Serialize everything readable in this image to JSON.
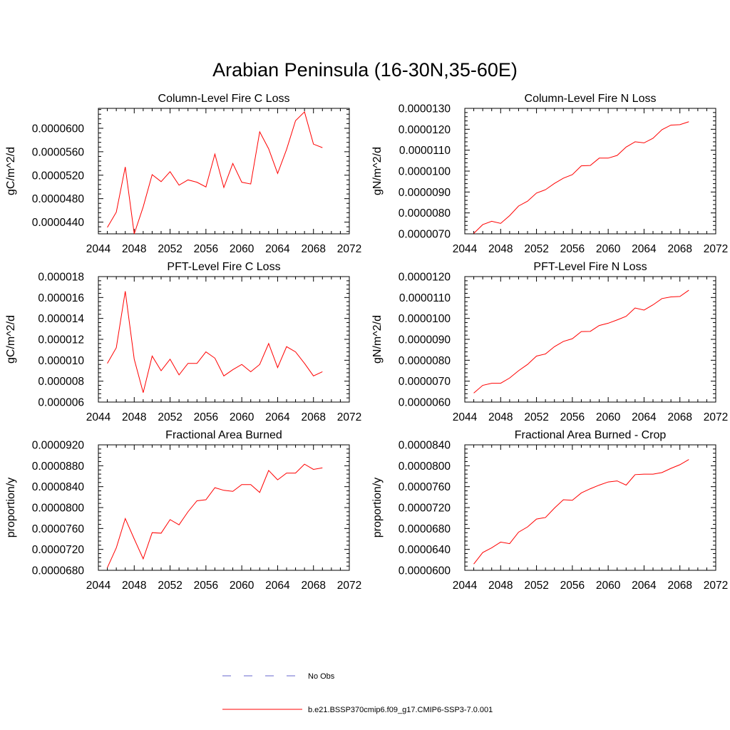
{
  "figure": {
    "title": "Arabian Peninsula (16-30N,35-60E)"
  },
  "colors": {
    "model": "#ff0000",
    "obs": "#6666cc"
  },
  "legend": {
    "entries": [
      {
        "label": "No Obs",
        "style": "dashed",
        "color": "#6666cc"
      },
      {
        "label": "b.e21.BSSP370cmip6.f09_g17.CMIP6-SSP3-7.0.001",
        "style": "solid",
        "color": "#ff0000"
      }
    ]
  },
  "chart_data": [
    {
      "type": "line",
      "title": "Column-Level Fire C Loss",
      "xlabel": "",
      "ylabel": "gC/m^2/d",
      "xlim": [
        2044,
        2072
      ],
      "ylim": [
        4.2e-05,
        6.34e-05
      ],
      "xticks": [
        "2044",
        "2048",
        "2052",
        "2056",
        "2060",
        "2064",
        "2068",
        "2072"
      ],
      "yticks": [
        {
          "value": 4.4e-05,
          "label": "0.0000440"
        },
        {
          "value": 4.8e-05,
          "label": "0.0000480"
        },
        {
          "value": 5.2e-05,
          "label": "0.0000520"
        },
        {
          "value": 5.6e-05,
          "label": "0.0000560"
        },
        {
          "value": 6e-05,
          "label": "0.0000600"
        }
      ],
      "series": [
        {
          "x": [
            2045,
            2046,
            2047,
            2048,
            2049,
            2050,
            2051,
            2052,
            2053,
            2054,
            2055,
            2056,
            2057,
            2058,
            2059,
            2060,
            2061,
            2062,
            2063,
            2064,
            2065,
            2066,
            2067,
            2068,
            2069
          ],
          "values": [
            4.31e-05,
            4.57e-05,
            5.34e-05,
            4.2e-05,
            4.66e-05,
            5.21e-05,
            5.09e-05,
            5.26e-05,
            5.03e-05,
            5.12e-05,
            5.08e-05,
            5e-05,
            5.56e-05,
            4.99e-05,
            5.4e-05,
            5.08e-05,
            5.05e-05,
            5.94e-05,
            5.65e-05,
            5.23e-05,
            5.64e-05,
            6.13e-05,
            6.28e-05,
            5.73e-05,
            5.67e-05
          ]
        }
      ]
    },
    {
      "type": "line",
      "title": "Column-Level Fire N Loss",
      "xlabel": "",
      "ylabel": "gN/m^2/d",
      "xlim": [
        2044,
        2072
      ],
      "ylim": [
        7e-06,
        1.3e-05
      ],
      "xticks": [
        "2044",
        "2048",
        "2052",
        "2056",
        "2060",
        "2064",
        "2068",
        "2072"
      ],
      "yticks": [
        {
          "value": 7e-06,
          "label": "0.0000070"
        },
        {
          "value": 8e-06,
          "label": "0.0000080"
        },
        {
          "value": 9e-06,
          "label": "0.0000090"
        },
        {
          "value": 1e-05,
          "label": "0.0000100"
        },
        {
          "value": 1.1e-05,
          "label": "0.0000110"
        },
        {
          "value": 1.2e-05,
          "label": "0.0000120"
        },
        {
          "value": 1.3e-05,
          "label": "0.0000130"
        }
      ],
      "series": [
        {
          "x": [
            2045,
            2046,
            2047,
            2048,
            2049,
            2050,
            2051,
            2052,
            2053,
            2054,
            2055,
            2056,
            2057,
            2058,
            2059,
            2060,
            2061,
            2062,
            2063,
            2064,
            2065,
            2066,
            2067,
            2068,
            2069
          ],
          "values": [
            7.02e-06,
            7.44e-06,
            7.6e-06,
            7.5e-06,
            7.87e-06,
            8.33e-06,
            8.56e-06,
            8.95e-06,
            9.11e-06,
            9.41e-06,
            9.66e-06,
            9.83e-06,
            1.025e-05,
            1.027e-05,
            1.062e-05,
            1.062e-05,
            1.075e-05,
            1.115e-05,
            1.14e-05,
            1.135e-05,
            1.157e-05,
            1.198e-05,
            1.22e-05,
            1.222e-05,
            1.236e-05
          ]
        }
      ]
    },
    {
      "type": "line",
      "title": "PFT-Level Fire C Loss",
      "xlabel": "",
      "ylabel": "gC/m^2/d",
      "xlim": [
        2044,
        2072
      ],
      "ylim": [
        6e-06,
        1.8e-05
      ],
      "xticks": [
        "2044",
        "2048",
        "2052",
        "2056",
        "2060",
        "2064",
        "2068",
        "2072"
      ],
      "yticks": [
        {
          "value": 6e-06,
          "label": "0.000006"
        },
        {
          "value": 8e-06,
          "label": "0.000008"
        },
        {
          "value": 1e-05,
          "label": "0.000010"
        },
        {
          "value": 1.2e-05,
          "label": "0.000012"
        },
        {
          "value": 1.4e-05,
          "label": "0.000014"
        },
        {
          "value": 1.6e-05,
          "label": "0.000016"
        },
        {
          "value": 1.8e-05,
          "label": "0.000018"
        }
      ],
      "series": [
        {
          "x": [
            2045,
            2046,
            2047,
            2048,
            2049,
            2050,
            2051,
            2052,
            2053,
            2054,
            2055,
            2056,
            2057,
            2058,
            2059,
            2060,
            2061,
            2062,
            2063,
            2064,
            2065,
            2066,
            2067,
            2068,
            2069
          ],
          "values": [
            9.7e-06,
            1.12e-05,
            1.66e-05,
            1.01e-05,
            6.9e-06,
            1.04e-05,
            9e-06,
            1.01e-05,
            8.6e-06,
            9.7e-06,
            9.7e-06,
            1.08e-05,
            1.02e-05,
            8.5e-06,
            9.1e-06,
            9.6e-06,
            8.9e-06,
            9.6e-06,
            1.16e-05,
            9.3e-06,
            1.13e-05,
            1.08e-05,
            9.7e-06,
            8.5e-06,
            8.9e-06
          ]
        }
      ]
    },
    {
      "type": "line",
      "title": "PFT-Level Fire N Loss",
      "xlabel": "",
      "ylabel": "gN/m^2/d",
      "xlim": [
        2044,
        2072
      ],
      "ylim": [
        6e-06,
        1.2e-05
      ],
      "xticks": [
        "2044",
        "2048",
        "2052",
        "2056",
        "2060",
        "2064",
        "2068",
        "2072"
      ],
      "yticks": [
        {
          "value": 6e-06,
          "label": "0.0000060"
        },
        {
          "value": 7e-06,
          "label": "0.0000070"
        },
        {
          "value": 8e-06,
          "label": "0.0000080"
        },
        {
          "value": 9e-06,
          "label": "0.0000090"
        },
        {
          "value": 1e-05,
          "label": "0.0000100"
        },
        {
          "value": 1.1e-05,
          "label": "0.0000110"
        },
        {
          "value": 1.2e-05,
          "label": "0.0000120"
        }
      ],
      "series": [
        {
          "x": [
            2045,
            2046,
            2047,
            2048,
            2049,
            2050,
            2051,
            2052,
            2053,
            2054,
            2055,
            2056,
            2057,
            2058,
            2059,
            2060,
            2061,
            2062,
            2063,
            2064,
            2065,
            2066,
            2067,
            2068,
            2069
          ],
          "values": [
            6.43e-06,
            6.8e-06,
            6.9e-06,
            6.9e-06,
            7.15e-06,
            7.5e-06,
            7.8e-06,
            8.2e-06,
            8.3e-06,
            8.65e-06,
            8.9e-06,
            9.03e-06,
            9.37e-06,
            9.38e-06,
            9.66e-06,
            9.77e-06,
            9.93e-06,
            1.01e-05,
            1.05e-05,
            1.04e-05,
            1.065e-05,
            1.095e-05,
            1.103e-05,
            1.105e-05,
            1.135e-05
          ]
        }
      ]
    },
    {
      "type": "line",
      "title": "Fractional Area Burned",
      "xlabel": "",
      "ylabel": "proportion/y",
      "xlim": [
        2044,
        2072
      ],
      "ylim": [
        6.8e-05,
        9.2e-05
      ],
      "xticks": [
        "2044",
        "2048",
        "2052",
        "2056",
        "2060",
        "2064",
        "2068",
        "2072"
      ],
      "yticks": [
        {
          "value": 6.8e-05,
          "label": "0.0000680"
        },
        {
          "value": 7.2e-05,
          "label": "0.0000720"
        },
        {
          "value": 7.6e-05,
          "label": "0.0000760"
        },
        {
          "value": 8e-05,
          "label": "0.0000800"
        },
        {
          "value": 8.4e-05,
          "label": "0.0000840"
        },
        {
          "value": 8.8e-05,
          "label": "0.0000880"
        },
        {
          "value": 9.2e-05,
          "label": "0.0000920"
        }
      ],
      "series": [
        {
          "x": [
            2045,
            2046,
            2047,
            2048,
            2049,
            2050,
            2051,
            2052,
            2053,
            2054,
            2055,
            2056,
            2057,
            2058,
            2059,
            2060,
            2061,
            2062,
            2063,
            2064,
            2065,
            2066,
            2067,
            2068,
            2069
          ],
          "values": [
            6.85e-05,
            7.23e-05,
            7.79e-05,
            7.4e-05,
            7.02e-05,
            7.52e-05,
            7.51e-05,
            7.77e-05,
            7.67e-05,
            7.92e-05,
            8.13e-05,
            8.15e-05,
            8.38e-05,
            8.33e-05,
            8.31e-05,
            8.44e-05,
            8.44e-05,
            8.29e-05,
            8.71e-05,
            8.53e-05,
            8.66e-05,
            8.66e-05,
            8.83e-05,
            8.73e-05,
            8.76e-05
          ]
        }
      ]
    },
    {
      "type": "line",
      "title": "Fractional Area Burned - Crop",
      "xlabel": "",
      "ylabel": "proportion/y",
      "xlim": [
        2044,
        2072
      ],
      "ylim": [
        6e-05,
        8.4e-05
      ],
      "xticks": [
        "2044",
        "2048",
        "2052",
        "2056",
        "2060",
        "2064",
        "2068",
        "2072"
      ],
      "yticks": [
        {
          "value": 6e-05,
          "label": "0.0000600"
        },
        {
          "value": 6.4e-05,
          "label": "0.0000640"
        },
        {
          "value": 6.8e-05,
          "label": "0.0000680"
        },
        {
          "value": 7.2e-05,
          "label": "0.0000720"
        },
        {
          "value": 7.6e-05,
          "label": "0.0000760"
        },
        {
          "value": 8e-05,
          "label": "0.0000800"
        },
        {
          "value": 8.4e-05,
          "label": "0.0000840"
        }
      ],
      "series": [
        {
          "x": [
            2045,
            2046,
            2047,
            2048,
            2049,
            2050,
            2051,
            2052,
            2053,
            2054,
            2055,
            2056,
            2057,
            2058,
            2059,
            2060,
            2061,
            2062,
            2063,
            2064,
            2065,
            2066,
            2067,
            2068,
            2069
          ],
          "values": [
            6.12e-05,
            6.34e-05,
            6.43e-05,
            6.54e-05,
            6.51e-05,
            6.73e-05,
            6.83e-05,
            6.98e-05,
            7.01e-05,
            7.19e-05,
            7.35e-05,
            7.34e-05,
            7.48e-05,
            7.56e-05,
            7.63e-05,
            7.69e-05,
            7.71e-05,
            7.63e-05,
            7.83e-05,
            7.84e-05,
            7.84e-05,
            7.87e-05,
            7.95e-05,
            8.02e-05,
            8.12e-05
          ]
        }
      ]
    }
  ]
}
